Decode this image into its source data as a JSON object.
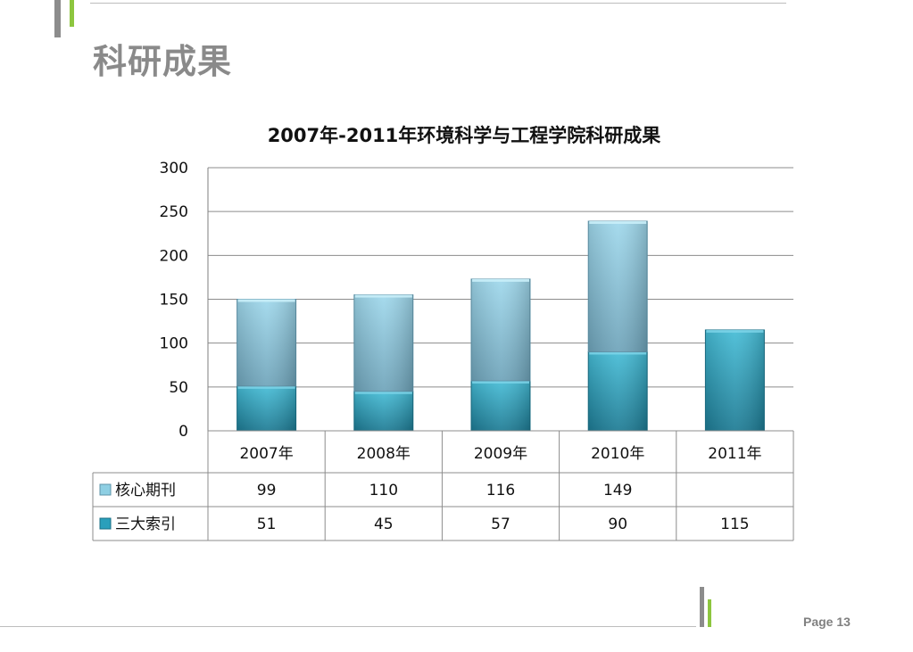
{
  "slide": {
    "title": "科研成果",
    "page_label": "Page 13"
  },
  "colors": {
    "accent_green": "#8dc63f",
    "accent_gray": "#8c8c8c",
    "series_core": "#8ecfe3",
    "series_core_dark": "#6fa6bd",
    "series_index": "#3aaec8",
    "series_index_dark": "#1f7f98",
    "grid": "#7f7f7f"
  },
  "chart_data": {
    "type": "bar",
    "stacked": true,
    "title": "2007年-2011年环境科学与工程学院科研成果",
    "categories": [
      "2007年",
      "2008年",
      "2009年",
      "2010年",
      "2011年"
    ],
    "series": [
      {
        "name": "三大索引",
        "values": [
          51,
          45,
          57,
          90,
          115
        ]
      },
      {
        "name": "核心期刊",
        "values": [
          99,
          110,
          116,
          149,
          null
        ]
      }
    ],
    "ylim": [
      0,
      300
    ],
    "yticks": [
      0,
      50,
      100,
      150,
      200,
      250,
      300
    ],
    "grid": true,
    "legend": "data-table",
    "data_table": true
  }
}
